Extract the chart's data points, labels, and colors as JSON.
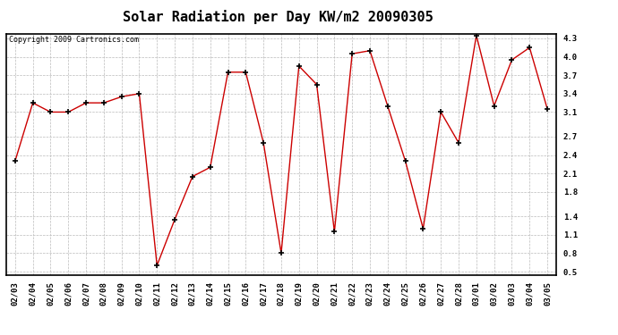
{
  "title": "Solar Radiation per Day KW/m2 20090305",
  "copyright": "Copyright 2009 Cartronics.com",
  "dates": [
    "02/03",
    "02/04",
    "02/05",
    "02/06",
    "02/07",
    "02/08",
    "02/09",
    "02/10",
    "02/11",
    "02/12",
    "02/13",
    "02/14",
    "02/15",
    "02/16",
    "02/17",
    "02/18",
    "02/19",
    "02/20",
    "02/21",
    "02/22",
    "02/23",
    "02/24",
    "02/25",
    "02/26",
    "02/27",
    "02/28",
    "03/01",
    "03/02",
    "03/03",
    "03/04",
    "03/05"
  ],
  "values": [
    2.3,
    3.25,
    3.1,
    3.1,
    3.25,
    3.25,
    3.35,
    3.4,
    0.6,
    1.35,
    2.05,
    2.2,
    3.75,
    3.75,
    2.6,
    0.8,
    3.85,
    3.55,
    1.15,
    4.05,
    4.1,
    3.2,
    2.3,
    1.2,
    3.1,
    2.6,
    4.35,
    3.2,
    3.95,
    4.15,
    3.15
  ],
  "line_color": "#cc0000",
  "bg_color": "#ffffff",
  "grid_color": "#bbbbbb",
  "yticks": [
    0.5,
    0.8,
    1.1,
    1.4,
    1.8,
    2.1,
    2.4,
    2.7,
    3.1,
    3.4,
    3.7,
    4.0,
    4.3
  ],
  "title_fontsize": 11,
  "tick_fontsize": 6.5,
  "copyright_fontsize": 6
}
